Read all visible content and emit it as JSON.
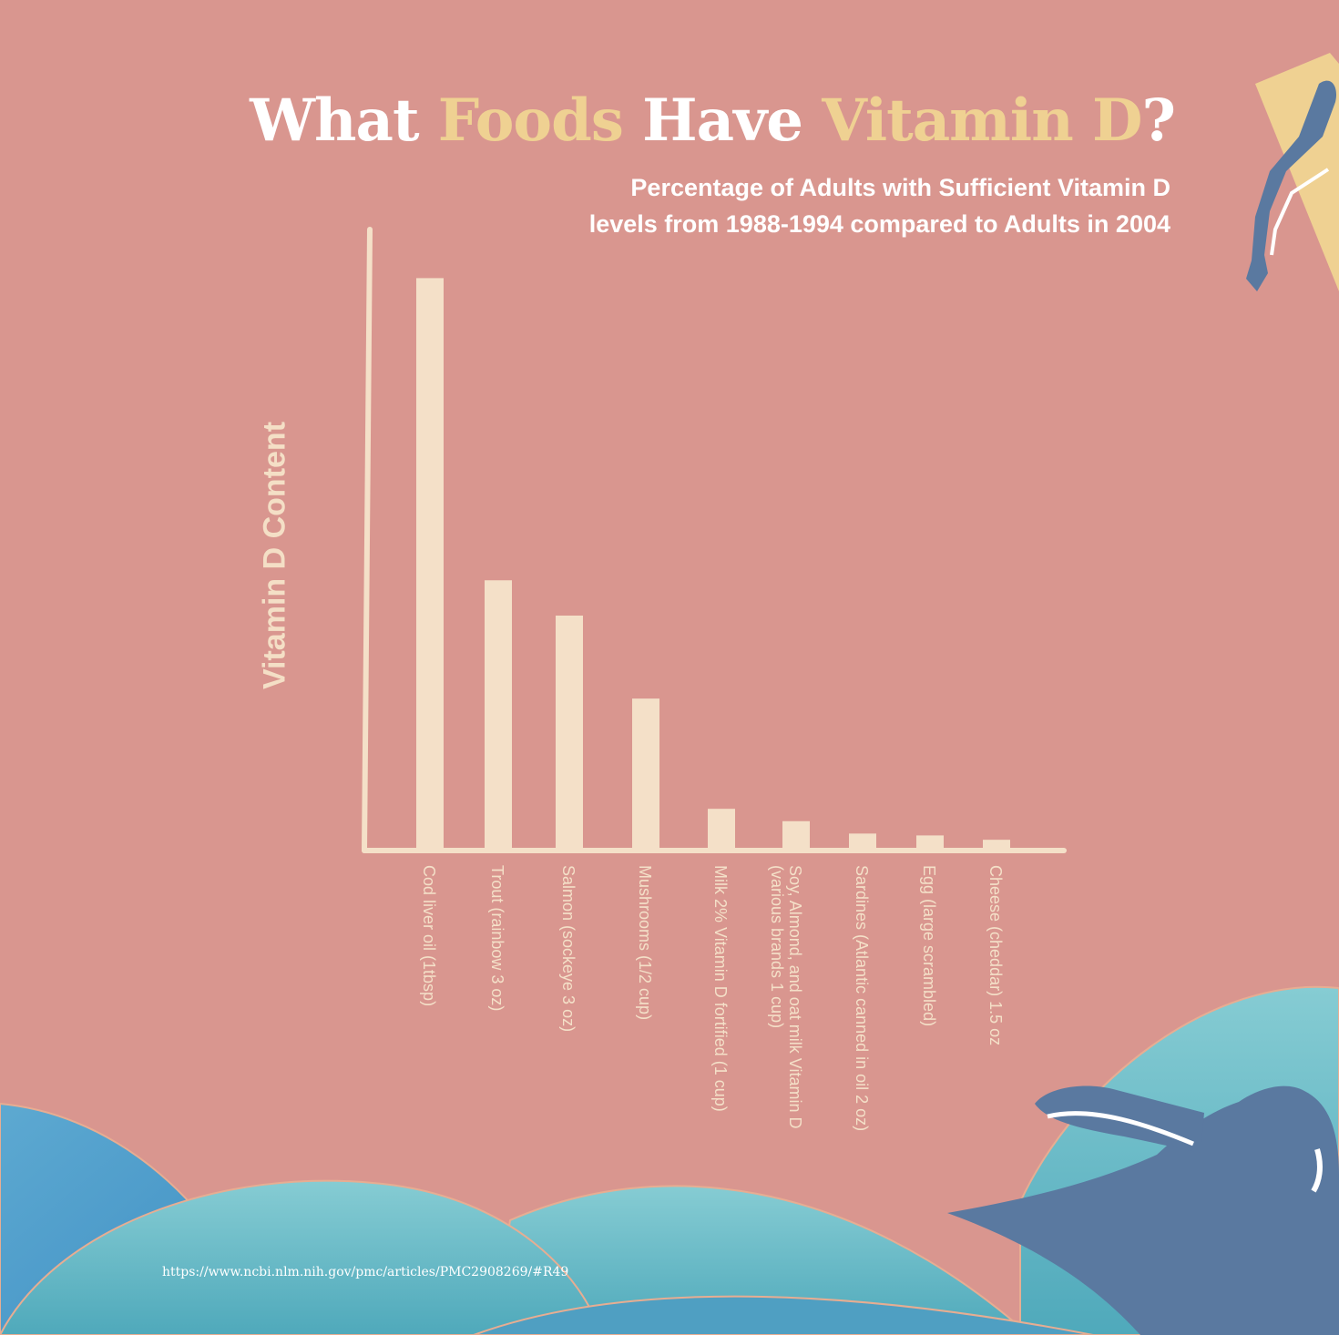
{
  "title": {
    "part1": "What ",
    "part2": "Foods",
    "part3": " Have ",
    "part4": "Vitamin D",
    "part5": "?"
  },
  "subtitle": {
    "line1": "Percentage of Adults with Sufficient Vitamin D",
    "line2": "levels from 1988-1994 compared to Adults in 2004"
  },
  "source": "https://www.ncbi.nlm.nih.gov/pmc/articles/PMC2908269/#R49",
  "colors": {
    "background": "#d9968f",
    "bars": "#f4e0c8",
    "highlight": "#efd192",
    "figure": "#5a79a0",
    "water": "#6fbcc6"
  },
  "chart_data": {
    "type": "bar",
    "ylabel": "Vitamin D Content",
    "xlabel": "",
    "ylim": [
      0,
      100
    ],
    "grid": false,
    "categories": [
      "Cod liver oil (1tbsp)",
      "Trout (rainbow 3 oz)",
      "Salmon (sockeye 3 oz)",
      "Mushrooms (1/2 cup)",
      "Milk 2% Vitamin D fortified (1 cup)",
      "Soy, Almond, and oat milk Vitamin D (various brands 1 cup)",
      "Sardines (Atlantic canned in oil 2 oz)",
      "Egg (large scrambled)",
      "Cheese (cheddar) 1.5 oz"
    ],
    "values": [
      92.0,
      43.2,
      37.5,
      24.1,
      6.3,
      4.3,
      2.3,
      2.0,
      1.3
    ]
  }
}
